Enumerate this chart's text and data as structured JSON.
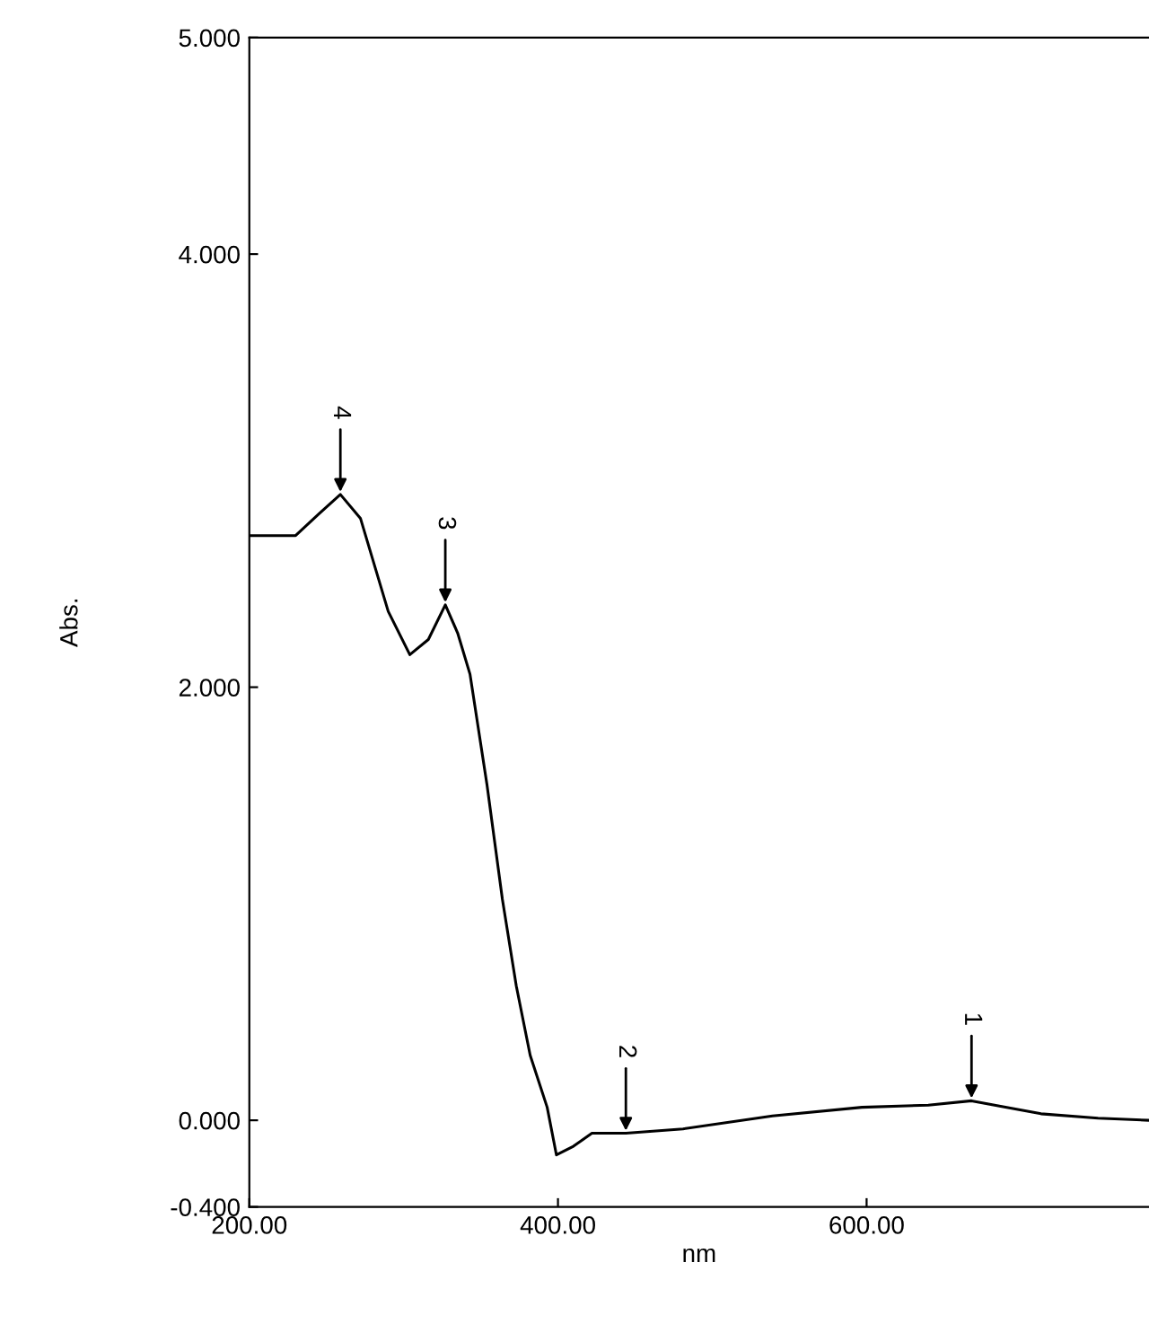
{
  "chart_data": {
    "type": "line",
    "xlabel": "nm",
    "ylabel": "Abs.",
    "x": [
      200,
      230,
      245,
      259,
      272,
      290,
      304,
      316,
      327,
      335,
      343,
      354,
      364,
      373,
      382,
      393,
      399,
      410,
      422,
      444,
      481,
      539,
      597,
      640,
      668,
      690,
      713,
      750,
      783
    ],
    "series": [
      {
        "color": "#000000",
        "values": [
          2.7,
          2.7,
          2.8,
          2.89,
          2.78,
          2.35,
          2.15,
          2.22,
          2.38,
          2.25,
          2.06,
          1.55,
          1.02,
          0.62,
          0.3,
          0.06,
          -0.16,
          -0.12,
          -0.06,
          -0.06,
          -0.04,
          0.02,
          0.06,
          0.07,
          0.09,
          0.06,
          0.03,
          0.01,
          0.0
        ]
      }
    ],
    "annotations": [
      {
        "text": "1",
        "x": 668,
        "y": 0.09
      },
      {
        "text": "2",
        "x": 444,
        "y": -0.06
      },
      {
        "text": "3",
        "x": 327,
        "y": 2.38
      },
      {
        "text": "4",
        "x": 259,
        "y": 2.89
      }
    ],
    "xlim": [
      200,
      783
    ],
    "ylim": [
      -0.4,
      5
    ],
    "xticks": [
      {
        "value": 200,
        "label": "200.00"
      },
      {
        "value": 400,
        "label": "400.00"
      },
      {
        "value": 600,
        "label": "600.00"
      }
    ],
    "yticks": [
      {
        "value": -0.4,
        "label": "-0.400"
      },
      {
        "value": 0,
        "label": "0.000"
      },
      {
        "value": 2,
        "label": "2.000"
      },
      {
        "value": 4,
        "label": "4.000"
      },
      {
        "value": 5,
        "label": "5.000"
      }
    ],
    "grid": false,
    "legend": false,
    "marker": "none",
    "line_style": "solid"
  }
}
